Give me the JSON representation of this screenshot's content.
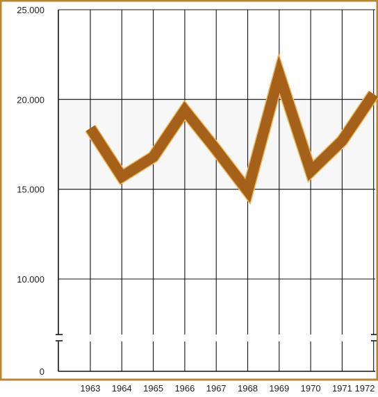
{
  "chart_data": {
    "type": "line",
    "categories": [
      "1963",
      "1964",
      "1965",
      "1966",
      "1967",
      "1968",
      "1969",
      "1970",
      "1971",
      "1972"
    ],
    "series": [
      {
        "values": [
          18400,
          15700,
          16800,
          19400,
          17200,
          14900,
          21400,
          16000,
          17700,
          20300
        ]
      }
    ],
    "y_ticks": [
      {
        "value": 25000,
        "label": "25.000"
      },
      {
        "value": 20000,
        "label": "20.000"
      },
      {
        "value": 15000,
        "label": "15.000"
      },
      {
        "value": 10000,
        "label": "10.000"
      },
      {
        "value": 0,
        "label": "0"
      }
    ],
    "ylim": [
      0,
      25000
    ],
    "y_axis_break": [
      2000,
      7000
    ],
    "grid": true,
    "colors": {
      "frame": "#b8862c",
      "line": "#a5601a",
      "line_edge": "#e8b85a",
      "grid": "#111111",
      "shade": "#f7f7f7"
    }
  }
}
